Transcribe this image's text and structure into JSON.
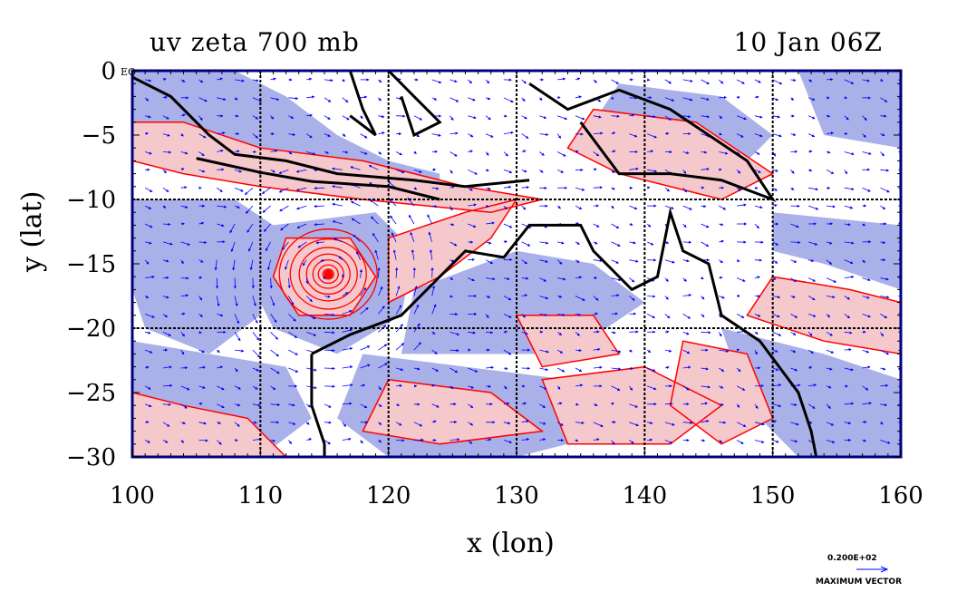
{
  "title_left": "uv zeta 700 mb",
  "title_right": "10 Jan 06Z",
  "xlabel": "x (lon)",
  "ylabel": "y (lat)",
  "equator_label": "EQ",
  "x_ticks": [
    "100",
    "110",
    "120",
    "130",
    "140",
    "150",
    "160"
  ],
  "y_ticks": [
    "0",
    "−5",
    "−10",
    "−15",
    "−20",
    "−25",
    "−30"
  ],
  "max_vector_value": "0.200E+02",
  "max_vector_label": "MAXIMUM VECTOR",
  "map": {
    "lon_range": [
      100,
      160
    ],
    "lat_range": [
      -30,
      0
    ],
    "gridlines": "every 10 deg",
    "colors": {
      "positive_fill": "#f5c8cc",
      "negative_fill": "#aab0e8",
      "contour": "#ff0000",
      "vectors": "#0000ff",
      "coast": "#000000",
      "frame": "#000080"
    },
    "cyclone_center": {
      "lon": 115.3,
      "lat": -15.8
    }
  }
}
